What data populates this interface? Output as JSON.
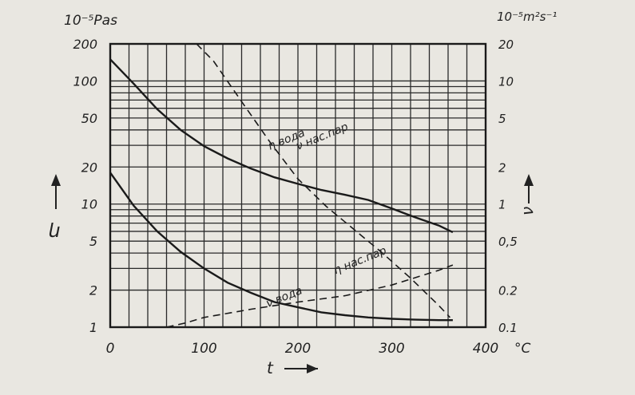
{
  "chart_data": {
    "type": "line",
    "title": "",
    "left_axis": {
      "unit": "10⁻⁵Pas",
      "scale": "log",
      "range": [
        1,
        200
      ],
      "ticks": [
        1,
        2,
        5,
        10,
        20,
        50,
        100,
        200
      ],
      "tick_labels": [
        "1",
        "2",
        "5",
        "10",
        "20",
        "50",
        "100",
        "200"
      ],
      "symbol": "η"
    },
    "right_axis": {
      "unit": "10⁻⁵m²s⁻¹",
      "scale": "log",
      "range": [
        0.1,
        20
      ],
      "ticks": [
        0.1,
        0.2,
        0.5,
        1,
        2,
        5,
        10,
        20
      ],
      "tick_labels": [
        "0.1",
        "0.2",
        "0,5",
        "1",
        "2",
        "5",
        "10",
        "20"
      ],
      "symbol": "ν"
    },
    "x_axis": {
      "range": [
        0,
        400
      ],
      "ticks": [
        0,
        100,
        200,
        300,
        400
      ],
      "tick_labels": [
        "0",
        "100",
        "200",
        "300",
        "400"
      ],
      "unit": "°C",
      "label": "t"
    },
    "grid": true,
    "series": [
      {
        "name": "η вода",
        "axis": "left",
        "style": "solid",
        "x": [
          0,
          25,
          50,
          75,
          100,
          125,
          150,
          175,
          200,
          225,
          250,
          275,
          300,
          325,
          350,
          365
        ],
        "y": [
          150,
          95,
          59,
          40,
          29.5,
          23.5,
          19.4,
          16.5,
          14.6,
          13,
          11.9,
          10.8,
          9.2,
          7.8,
          6.7,
          5.9
        ]
      },
      {
        "name": "ν вода",
        "axis": "right",
        "style": "solid",
        "x": [
          0,
          25,
          50,
          75,
          100,
          125,
          150,
          175,
          200,
          225,
          250,
          275,
          300,
          325,
          350,
          365
        ],
        "y": [
          1.8,
          0.97,
          0.6,
          0.41,
          0.3,
          0.23,
          0.19,
          0.16,
          0.145,
          0.132,
          0.125,
          0.12,
          0.117,
          0.115,
          0.114,
          0.114
        ]
      },
      {
        "name": "ν нас.пар",
        "axis": "right",
        "style": "dashed",
        "x": [
          92,
          110,
          140,
          170,
          200,
          230,
          260,
          290,
          320,
          350,
          362
        ],
        "y": [
          20,
          14.5,
          6.8,
          3.2,
          1.6,
          0.96,
          0.62,
          0.4,
          0.25,
          0.15,
          0.12
        ]
      },
      {
        "name": "η нас.пар",
        "axis": "left",
        "style": "dashed",
        "x": [
          60,
          80,
          100,
          150,
          200,
          250,
          300,
          350,
          365
        ],
        "y": [
          1,
          1.08,
          1.2,
          1.4,
          1.6,
          1.8,
          2.2,
          2.9,
          3.2
        ]
      }
    ],
    "annotations": [
      {
        "text": "η вода",
        "x": 170,
        "y": 27.5,
        "axis": "left"
      },
      {
        "text": "ν нас.пар",
        "x": 200,
        "y": 27.5,
        "axis": "left"
      },
      {
        "text": "η нас.пар",
        "x": 240,
        "y": 2.7,
        "axis": "left"
      },
      {
        "text": "ν вода",
        "x": 168,
        "y": 1.45,
        "axis": "left"
      }
    ]
  }
}
